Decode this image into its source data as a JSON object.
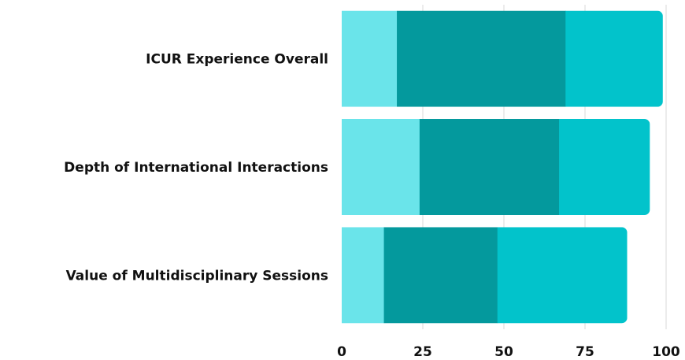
{
  "chart_data": {
    "type": "bar",
    "orientation": "horizontal",
    "stacked": true,
    "categories": [
      "ICUR Experience Overall",
      "Depth of International Interactions",
      "Value of Multidisciplinary Sessions"
    ],
    "series": [
      {
        "values": [
          17,
          24,
          13
        ],
        "color": "#6ae4ea"
      },
      {
        "values": [
          52,
          43,
          35
        ],
        "color": "#04999d"
      },
      {
        "values": [
          30,
          28,
          40
        ],
        "color": "#02c3cb"
      }
    ],
    "x_ticks": [
      0,
      25,
      50,
      75,
      100
    ],
    "xlim": [
      0,
      100
    ],
    "grid": true,
    "legend": "none"
  }
}
